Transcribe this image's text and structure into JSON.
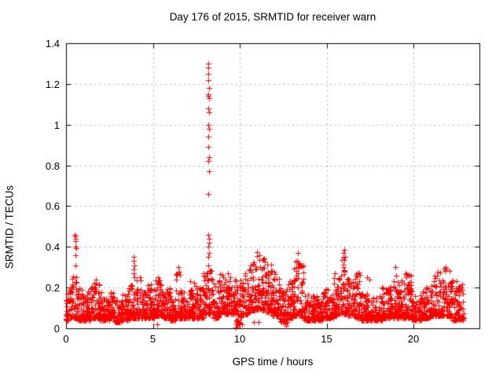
{
  "chart_data": {
    "type": "scatter",
    "title": "Day 176 of 2015, SRMTID for receiver warn",
    "xlabel": "GPS time / hours",
    "ylabel": "SRMTID / TECUs",
    "xlim": [
      0,
      23.8
    ],
    "ylim": [
      0,
      1.4
    ],
    "xticks": [
      0,
      5,
      10,
      15,
      20
    ],
    "yticks": [
      0,
      0.2,
      0.4,
      0.6,
      0.8,
      1,
      1.2,
      1.4
    ],
    "ytick_labels": [
      "0",
      "0.2",
      "0.4",
      "0.6",
      "0.8",
      "1",
      "1.2",
      "1.4"
    ],
    "grid": true,
    "legend": "none",
    "marker": "plus",
    "marker_color": "#ff0000",
    "grid_color": "#b2b2b2",
    "axis_color": "#000000",
    "background": "#ffffff",
    "points_per_hour": 130,
    "band_exponent": 2.2,
    "seed": 176,
    "envelope_bins": [
      [
        0.0,
        0.3,
        0.04,
        0.22
      ],
      [
        0.3,
        0.45,
        0.05,
        0.26
      ],
      [
        0.45,
        0.65,
        0.05,
        0.3
      ],
      [
        0.65,
        0.9,
        0.04,
        0.2
      ],
      [
        0.9,
        1.2,
        0.04,
        0.17
      ],
      [
        1.2,
        1.5,
        0.04,
        0.2
      ],
      [
        1.5,
        1.9,
        0.05,
        0.24
      ],
      [
        1.9,
        2.2,
        0.04,
        0.18
      ],
      [
        2.2,
        2.5,
        0.04,
        0.15
      ],
      [
        2.5,
        2.8,
        0.05,
        0.2
      ],
      [
        2.8,
        3.2,
        0.03,
        0.14
      ],
      [
        3.2,
        3.6,
        0.04,
        0.17
      ],
      [
        3.6,
        3.9,
        0.05,
        0.22
      ],
      [
        3.9,
        4.3,
        0.05,
        0.26
      ],
      [
        4.3,
        4.7,
        0.05,
        0.18
      ],
      [
        4.7,
        5.1,
        0.05,
        0.22
      ],
      [
        5.1,
        5.6,
        0.06,
        0.26
      ],
      [
        5.6,
        6.0,
        0.05,
        0.2
      ],
      [
        6.0,
        6.3,
        0.04,
        0.16
      ],
      [
        6.3,
        6.6,
        0.05,
        0.28
      ],
      [
        6.6,
        7.0,
        0.05,
        0.2
      ],
      [
        7.0,
        7.5,
        0.05,
        0.23
      ],
      [
        7.5,
        7.9,
        0.05,
        0.2
      ],
      [
        7.9,
        8.45,
        0.07,
        0.3
      ],
      [
        8.45,
        8.8,
        0.05,
        0.22
      ],
      [
        8.8,
        9.3,
        0.07,
        0.27
      ],
      [
        9.3,
        9.8,
        0.07,
        0.3
      ],
      [
        9.8,
        10.15,
        0.02,
        0.24
      ],
      [
        10.15,
        10.6,
        0.07,
        0.3
      ],
      [
        10.6,
        11.0,
        0.09,
        0.34
      ],
      [
        11.0,
        11.5,
        0.09,
        0.38
      ],
      [
        11.5,
        11.9,
        0.08,
        0.33
      ],
      [
        11.9,
        12.3,
        0.06,
        0.28
      ],
      [
        12.3,
        12.8,
        0.03,
        0.2
      ],
      [
        12.8,
        13.1,
        0.05,
        0.24
      ],
      [
        13.1,
        13.7,
        0.06,
        0.33
      ],
      [
        13.7,
        14.2,
        0.04,
        0.18
      ],
      [
        14.2,
        14.8,
        0.04,
        0.16
      ],
      [
        14.8,
        15.4,
        0.05,
        0.2
      ],
      [
        15.4,
        15.8,
        0.06,
        0.28
      ],
      [
        15.8,
        16.2,
        0.07,
        0.38
      ],
      [
        16.2,
        16.6,
        0.06,
        0.25
      ],
      [
        16.6,
        17.0,
        0.05,
        0.28
      ],
      [
        17.0,
        17.5,
        0.04,
        0.18
      ],
      [
        17.5,
        18.2,
        0.04,
        0.16
      ],
      [
        18.2,
        18.7,
        0.05,
        0.2
      ],
      [
        18.7,
        19.3,
        0.05,
        0.24
      ],
      [
        19.3,
        19.9,
        0.05,
        0.27
      ],
      [
        19.9,
        20.5,
        0.04,
        0.17
      ],
      [
        20.5,
        21.0,
        0.05,
        0.2
      ],
      [
        21.0,
        21.6,
        0.06,
        0.28
      ],
      [
        21.6,
        22.2,
        0.06,
        0.3
      ],
      [
        22.2,
        22.9,
        0.04,
        0.24
      ]
    ],
    "outlier_points": [
      [
        8.18,
        1.3
      ],
      [
        8.21,
        1.28
      ],
      [
        8.2,
        1.25
      ],
      [
        8.19,
        1.22
      ],
      [
        8.23,
        1.18
      ],
      [
        8.21,
        1.15
      ],
      [
        8.18,
        1.14
      ],
      [
        8.22,
        1.13
      ],
      [
        8.2,
        1.08
      ],
      [
        8.23,
        1.06
      ],
      [
        8.17,
        1.0
      ],
      [
        8.24,
        0.98
      ],
      [
        8.21,
        0.94
      ],
      [
        8.19,
        0.89
      ],
      [
        8.22,
        0.84
      ],
      [
        8.2,
        0.82
      ],
      [
        8.23,
        0.77
      ],
      [
        8.21,
        0.66
      ],
      [
        8.2,
        0.46
      ],
      [
        8.24,
        0.44
      ],
      [
        8.22,
        0.42
      ],
      [
        8.19,
        0.4
      ],
      [
        8.23,
        0.37
      ],
      [
        8.21,
        0.35
      ],
      [
        8.2,
        0.31
      ],
      [
        0.52,
        0.46
      ],
      [
        0.55,
        0.45
      ],
      [
        0.54,
        0.44
      ],
      [
        0.56,
        0.43
      ],
      [
        0.53,
        0.4
      ],
      [
        0.57,
        0.395
      ],
      [
        0.55,
        0.36
      ],
      [
        0.54,
        0.31
      ],
      [
        0.58,
        0.25
      ],
      [
        3.88,
        0.35
      ],
      [
        3.9,
        0.33
      ],
      [
        3.92,
        0.31
      ],
      [
        3.89,
        0.29
      ],
      [
        3.91,
        0.27
      ],
      [
        3.93,
        0.25
      ],
      [
        6.45,
        0.3
      ],
      [
        6.43,
        0.27
      ],
      [
        13.35,
        0.37
      ],
      [
        13.3,
        0.33
      ],
      [
        13.45,
        0.32
      ],
      [
        16.0,
        0.385
      ],
      [
        15.95,
        0.37
      ],
      [
        16.05,
        0.35
      ],
      [
        17.35,
        0.25
      ],
      [
        17.45,
        0.24
      ],
      [
        18.95,
        0.3
      ],
      [
        19.0,
        0.26
      ],
      [
        19.55,
        0.27
      ],
      [
        19.6,
        0.26
      ],
      [
        21.85,
        0.3
      ],
      [
        21.9,
        0.29
      ],
      [
        9.78,
        0.005
      ],
      [
        9.8,
        0.02
      ],
      [
        9.76,
        0.04
      ],
      [
        10.8,
        0.03
      ],
      [
        11.1,
        0.03
      ],
      [
        12.65,
        0.01
      ],
      [
        5.25,
        0.02
      ]
    ]
  }
}
